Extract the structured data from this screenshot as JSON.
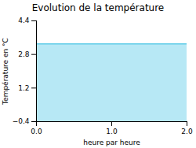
{
  "chart_data": {
    "type": "area",
    "title": "Evolution de la température",
    "xlabel": "heure par heure",
    "ylabel": "Température en °C",
    "x": [
      0,
      2
    ],
    "values": [
      3.3,
      3.3
    ],
    "color": "#60cce8",
    "xlim": [
      0,
      2
    ],
    "ylim": [
      -0.4,
      4.4
    ],
    "xticks": [
      0,
      1,
      2
    ],
    "yticks": [
      -0.4,
      1.2,
      2.8,
      4.4
    ],
    "grid": false
  }
}
